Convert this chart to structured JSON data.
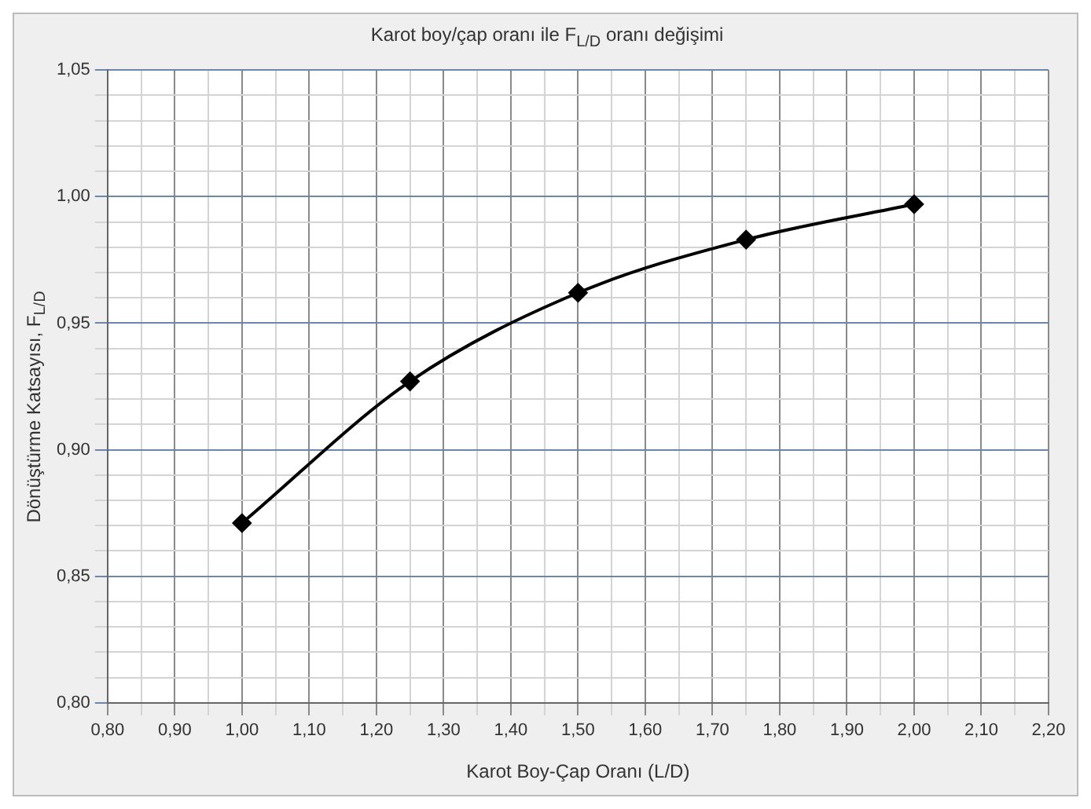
{
  "chart_data": {
    "type": "line",
    "title": "Karot boy/çap oranı ile F$_{L/D}$ oranı  değişimi",
    "xlabel": "Karot Boy-Çap Oranı (L/D)",
    "ylabel": "Dönüştürme Katsayısı, F$_{L/D}$",
    "x": [
      1.0,
      1.25,
      1.5,
      1.75,
      2.0
    ],
    "series": [
      {
        "color": "#000000",
        "values": [
          0.871,
          0.927,
          0.962,
          0.983,
          0.997
        ]
      }
    ],
    "xlim": [
      0.8,
      2.2
    ],
    "xticks": [
      {
        "value": 0.8,
        "label": "0,80"
      },
      {
        "value": 0.85,
        "label": null
      },
      {
        "value": 0.9,
        "label": "0,90"
      },
      {
        "value": 0.95,
        "label": null
      },
      {
        "value": 1.0,
        "label": "1,00"
      },
      {
        "value": 1.05,
        "label": null
      },
      {
        "value": 1.1,
        "label": "1,10"
      },
      {
        "value": 1.15,
        "label": null
      },
      {
        "value": 1.2,
        "label": "1,20"
      },
      {
        "value": 1.25,
        "label": null
      },
      {
        "value": 1.3,
        "label": "1,30"
      },
      {
        "value": 1.35,
        "label": null
      },
      {
        "value": 1.4,
        "label": "1,40"
      },
      {
        "value": 1.45,
        "label": null
      },
      {
        "value": 1.5,
        "label": "1,50"
      },
      {
        "value": 1.55,
        "label": null
      },
      {
        "value": 1.6,
        "label": "1,60"
      },
      {
        "value": 1.65,
        "label": null
      },
      {
        "value": 1.7,
        "label": "1,70"
      },
      {
        "value": 1.75,
        "label": null
      },
      {
        "value": 1.8,
        "label": "1,80"
      },
      {
        "value": 1.85,
        "label": null
      },
      {
        "value": 1.9,
        "label": "1,90"
      },
      {
        "value": 1.95,
        "label": null
      },
      {
        "value": 2.0,
        "label": "2,00"
      },
      {
        "value": 2.05,
        "label": null
      },
      {
        "value": 2.1,
        "label": "2,10"
      },
      {
        "value": 2.15,
        "label": null
      },
      {
        "value": 2.2,
        "label": "2,20"
      }
    ],
    "ylim": [
      0.8,
      1.05
    ],
    "yticks": [
      {
        "value": 0.8,
        "label": "0,80"
      },
      {
        "value": 0.81,
        "label": null
      },
      {
        "value": 0.82,
        "label": null
      },
      {
        "value": 0.83,
        "label": null
      },
      {
        "value": 0.84,
        "label": null
      },
      {
        "value": 0.85,
        "label": "0,85"
      },
      {
        "value": 0.86,
        "label": null
      },
      {
        "value": 0.87,
        "label": null
      },
      {
        "value": 0.88,
        "label": null
      },
      {
        "value": 0.89,
        "label": null
      },
      {
        "value": 0.9,
        "label": "0,90"
      },
      {
        "value": 0.91,
        "label": null
      },
      {
        "value": 0.92,
        "label": null
      },
      {
        "value": 0.93,
        "label": null
      },
      {
        "value": 0.94,
        "label": null
      },
      {
        "value": 0.95,
        "label": "0,95"
      },
      {
        "value": 0.96,
        "label": null
      },
      {
        "value": 0.97,
        "label": null
      },
      {
        "value": 0.98,
        "label": null
      },
      {
        "value": 0.99,
        "label": null
      },
      {
        "value": 1.0,
        "label": "1,00"
      },
      {
        "value": 1.01,
        "label": null
      },
      {
        "value": 1.02,
        "label": null
      },
      {
        "value": 1.03,
        "label": null
      },
      {
        "value": 1.04,
        "label": null
      },
      {
        "value": 1.05,
        "label": "1,05"
      }
    ],
    "grid": true,
    "marker": "diamond",
    "line_style": "solid",
    "legend": false
  }
}
